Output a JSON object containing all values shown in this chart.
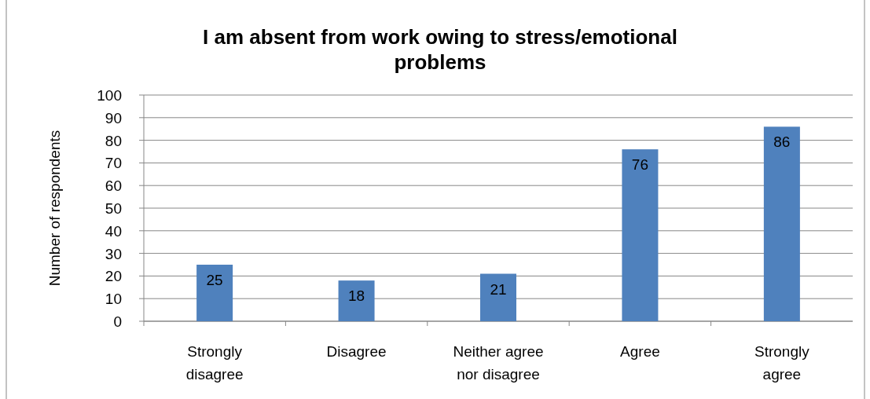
{
  "chart_data": {
    "type": "bar",
    "title": "I am absent from work owing to stress/emotional problems",
    "ylabel": "Number of respondents",
    "categories": [
      "Strongly disagree",
      "Disagree",
      "Neither agree nor disagree",
      "Agree",
      "Strongly agree"
    ],
    "values": [
      25,
      18,
      21,
      76,
      86
    ],
    "color": "#4f81bd",
    "ylim": [
      0,
      100
    ],
    "yticks": [
      0,
      10,
      20,
      30,
      40,
      50,
      60,
      70,
      80,
      90,
      100
    ],
    "grid": "y",
    "data_labels": true
  }
}
